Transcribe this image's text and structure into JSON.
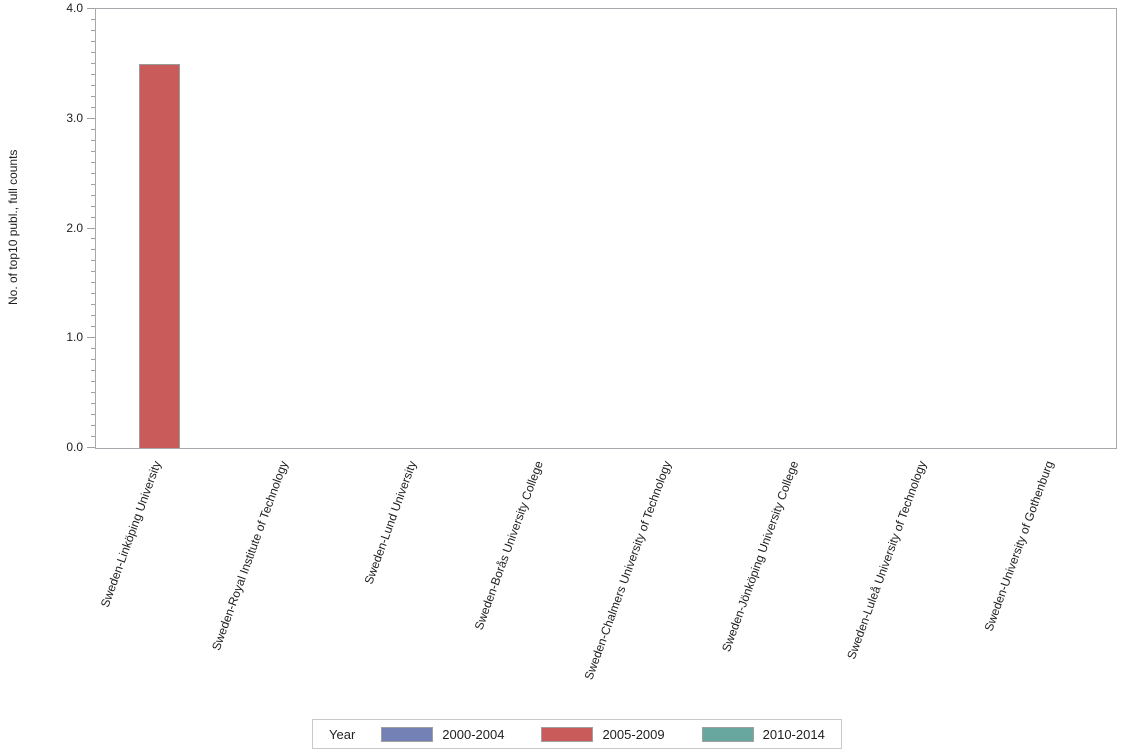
{
  "chart_data": {
    "type": "bar",
    "title": "",
    "xlabel": "",
    "ylabel": "No. of top10 publ., full counts",
    "ylim": [
      0.0,
      4.0
    ],
    "ytick_step": 1.0,
    "ytick_minor_step": 0.1,
    "ytick_labels": [
      "0.0",
      "1.0",
      "2.0",
      "3.0",
      "4.0"
    ],
    "grid": false,
    "categories": [
      "Sweden-Linköping University",
      "Sweden-Royal Institute of Technology",
      "Sweden-Lund University",
      "Sweden-Borås University College",
      "Sweden-Chalmers University of Technology",
      "Sweden-Jönköping University College",
      "Sweden-Luleå University of Technology",
      "Sweden-University of Gothenburg"
    ],
    "series": [
      {
        "name": "2000-2004",
        "color": "#7381b5",
        "values": [
          0,
          0,
          0,
          0,
          0,
          0,
          0,
          0
        ]
      },
      {
        "name": "2005-2009",
        "color": "#c95b5b",
        "values": [
          3.5,
          0,
          0,
          0,
          0,
          0,
          0,
          0
        ]
      },
      {
        "name": "2010-2014",
        "color": "#68a79f",
        "values": [
          0,
          0,
          0,
          0,
          0,
          0,
          0,
          0
        ]
      }
    ],
    "legend": {
      "title": "Year",
      "position": "bottom"
    }
  },
  "colors": {
    "axis": "#a0a0a0",
    "frame": "#a6a9ad",
    "bar_border": "#9b9b9b",
    "legend_border": "#c9c9c9",
    "text": "#1f1f1f"
  }
}
